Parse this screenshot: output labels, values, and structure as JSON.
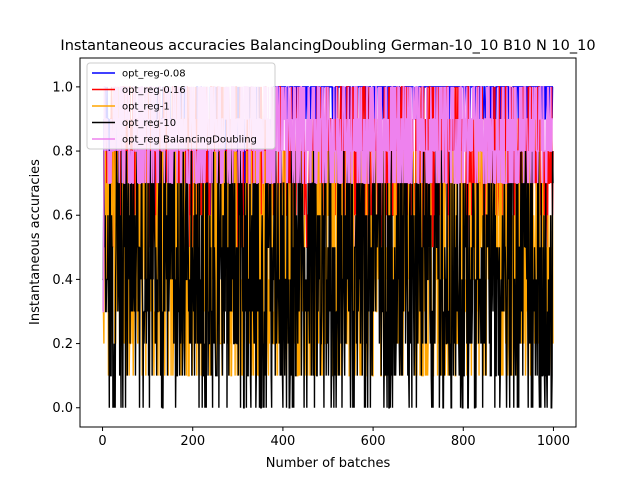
{
  "chart_data": {
    "type": "line",
    "title": "Instantaneous accuracies BalancingDoubling German-10_10 B10 N 10_10",
    "xlabel": "Number of batches",
    "ylabel": "Instantaneous accuracies",
    "xlim": [
      -50,
      1050
    ],
    "ylim": [
      -0.06,
      1.09
    ],
    "xticks": [
      0,
      200,
      400,
      600,
      800,
      1000
    ],
    "xtick_labels": [
      "0",
      "200",
      "400",
      "600",
      "800",
      "1000"
    ],
    "yticks": [
      0.0,
      0.2,
      0.4,
      0.6,
      0.8,
      1.0
    ],
    "ytick_labels": [
      "0.0",
      "0.2",
      "0.4",
      "0.6",
      "0.8",
      "1.0"
    ],
    "legend_position": "top-left",
    "n_points": 1000,
    "series": [
      {
        "name": "opt_reg-0.08",
        "color": "#0000ff",
        "profile": {
          "start": 0.3,
          "early_range": [
            0.6,
            1.0
          ],
          "late_values": [
            1.0,
            1.0,
            1.0,
            0.9
          ],
          "late_from_batch": 380
        }
      },
      {
        "name": "opt_reg-0.16",
        "color": "#ff0000",
        "profile": {
          "start": 0.3,
          "values": [
            1.0,
            0.9,
            0.8,
            0.7,
            0.6,
            0.5
          ],
          "min_after_start": 0.5
        }
      },
      {
        "name": "opt_reg-1",
        "color": "#ffa500",
        "profile": {
          "start": 0.3,
          "values": [
            0.8,
            0.7,
            0.6,
            0.5,
            0.4,
            0.3,
            0.2,
            0.1
          ],
          "min_after_start": 0.1
        }
      },
      {
        "name": "opt_reg-10",
        "color": "#000000",
        "profile": {
          "start": 0.4,
          "values": [
            0.5,
            0.4,
            0.3,
            0.2,
            0.6,
            0.1,
            0.0,
            0.7,
            0.8
          ],
          "min_after_start": 0.0
        }
      },
      {
        "name": "opt_reg BalancingDoubling",
        "color": "#ee82ee",
        "profile": {
          "start": 0.3,
          "values": [
            1.0,
            0.9,
            0.8,
            0.7
          ],
          "min_after_start": 0.7
        }
      }
    ]
  }
}
